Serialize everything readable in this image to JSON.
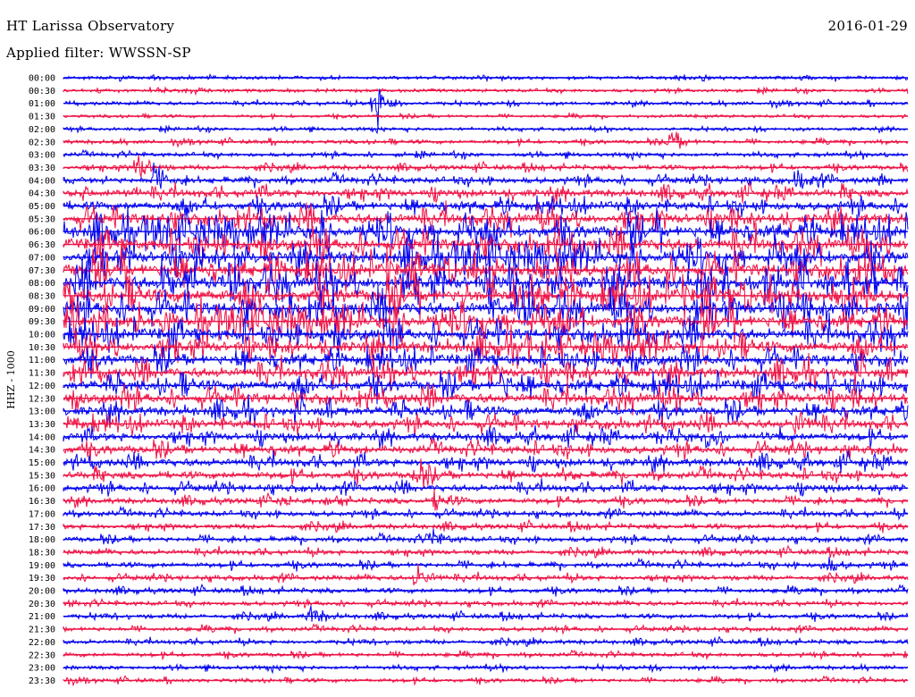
{
  "header": {
    "station": "HT Larissa Observatory",
    "date": "2016-01-29",
    "filter": "Applied filter: WWSSN-SP"
  },
  "chart_data": {
    "type": "line",
    "kind": "helicorder",
    "ylabel": "HHZ - 1000",
    "row_labels": [
      "00:00",
      "00:30",
      "01:00",
      "01:30",
      "02:00",
      "02:30",
      "03:00",
      "03:30",
      "04:00",
      "04:30",
      "05:00",
      "05:30",
      "06:00",
      "06:30",
      "07:00",
      "07:30",
      "08:00",
      "08:30",
      "09:00",
      "09:30",
      "10:00",
      "10:30",
      "11:00",
      "11:30",
      "12:00",
      "12:30",
      "13:00",
      "13:30",
      "14:00",
      "14:30",
      "15:00",
      "15:30",
      "16:00",
      "16:30",
      "17:00",
      "17:30",
      "18:00",
      "18:30",
      "19:00",
      "19:30",
      "20:00",
      "20:30",
      "21:00",
      "21:30",
      "22:00",
      "22:30",
      "23:00",
      "23:30"
    ],
    "row_minutes": 30,
    "colors": [
      "#0000ee",
      "#ee1144"
    ],
    "row_noise_level": [
      0.1,
      0.09,
      0.12,
      0.07,
      0.1,
      0.14,
      0.16,
      0.22,
      0.35,
      0.45,
      0.55,
      0.7,
      0.85,
      0.8,
      0.85,
      0.9,
      0.95,
      0.95,
      0.9,
      0.85,
      0.8,
      0.75,
      0.7,
      0.68,
      0.7,
      0.65,
      0.6,
      0.55,
      0.5,
      0.5,
      0.48,
      0.42,
      0.4,
      0.3,
      0.28,
      0.25,
      0.26,
      0.24,
      0.25,
      0.24,
      0.22,
      0.2,
      0.2,
      0.18,
      0.18,
      0.16,
      0.15,
      0.14
    ],
    "events": [
      {
        "row": 2,
        "minute": 11.0,
        "amplitude": 3.5
      },
      {
        "row": 5,
        "minute": 21.5,
        "amplitude": 1.5
      },
      {
        "row": 7,
        "minute": 2.6,
        "amplitude": 2.0
      },
      {
        "row": 8,
        "minute": 3.2,
        "amplitude": 1.8
      },
      {
        "row": 8,
        "minute": 26.0,
        "amplitude": 1.6
      },
      {
        "row": 24,
        "minute": 15.5,
        "amplitude": 2.2
      },
      {
        "row": 27,
        "minute": 26.0,
        "amplitude": 2.0
      },
      {
        "row": 31,
        "minute": 12.5,
        "amplitude": 1.6
      },
      {
        "row": 33,
        "minute": 13.2,
        "amplitude": 1.5
      },
      {
        "row": 36,
        "minute": 13.0,
        "amplitude": 1.4
      },
      {
        "row": 38,
        "minute": 27.0,
        "amplitude": 1.4
      },
      {
        "row": 39,
        "minute": 12.5,
        "amplitude": 1.6
      },
      {
        "row": 42,
        "minute": 8.7,
        "amplitude": 1.5
      }
    ]
  }
}
